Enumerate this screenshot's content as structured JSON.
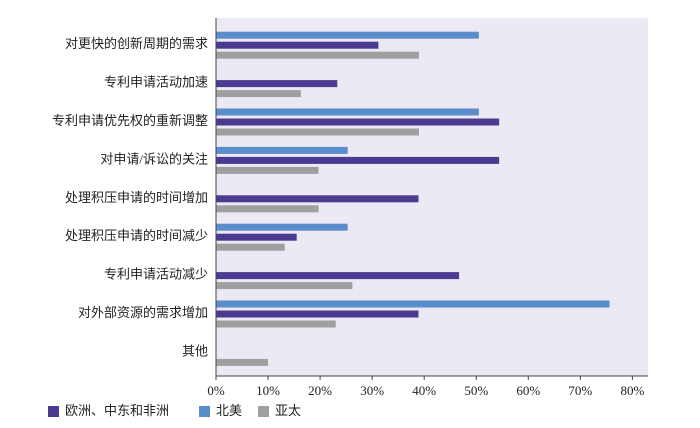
{
  "chart_data": {
    "type": "bar",
    "orientation": "horizontal",
    "categories": [
      "对更快的创新周期的需求",
      "专利申请活动加速",
      "专利申请优先权的重新调整",
      "对申请/诉讼的关注",
      "处理积压申请的时间增加",
      "处理积压申请的时间减少",
      "专利申请活动减少",
      "对外部资源的需求增加",
      "其他"
    ],
    "series": [
      {
        "name": "欧洲、中东和非洲",
        "color": "#4b3a8f",
        "values": [
          31.2,
          23.3,
          54.4,
          54.4,
          38.9,
          15.5,
          46.7,
          38.9,
          null
        ]
      },
      {
        "name": "北美",
        "color": "#5b8ccc",
        "values": [
          50.5,
          null,
          50.5,
          25.3,
          null,
          25.3,
          null,
          75.6,
          null
        ]
      },
      {
        "name": "亚太",
        "color": "#a09fa0",
        "values": [
          39,
          16.3,
          39,
          19.7,
          19.7,
          13.2,
          26.2,
          23,
          10
        ]
      }
    ],
    "xlim": [
      0,
      83
    ],
    "xticks": [
      {
        "value": 0,
        "label": "0%"
      },
      {
        "value": 10,
        "label": "10%"
      },
      {
        "value": 20,
        "label": "20%"
      },
      {
        "value": 30,
        "label": "30%"
      },
      {
        "value": 40,
        "label": "40%"
      },
      {
        "value": 50,
        "label": "50%"
      },
      {
        "value": 60,
        "label": "60%"
      },
      {
        "value": 70,
        "label": "70%"
      },
      {
        "value": 80,
        "label": "80%"
      }
    ],
    "background": "#ebe9f4"
  }
}
